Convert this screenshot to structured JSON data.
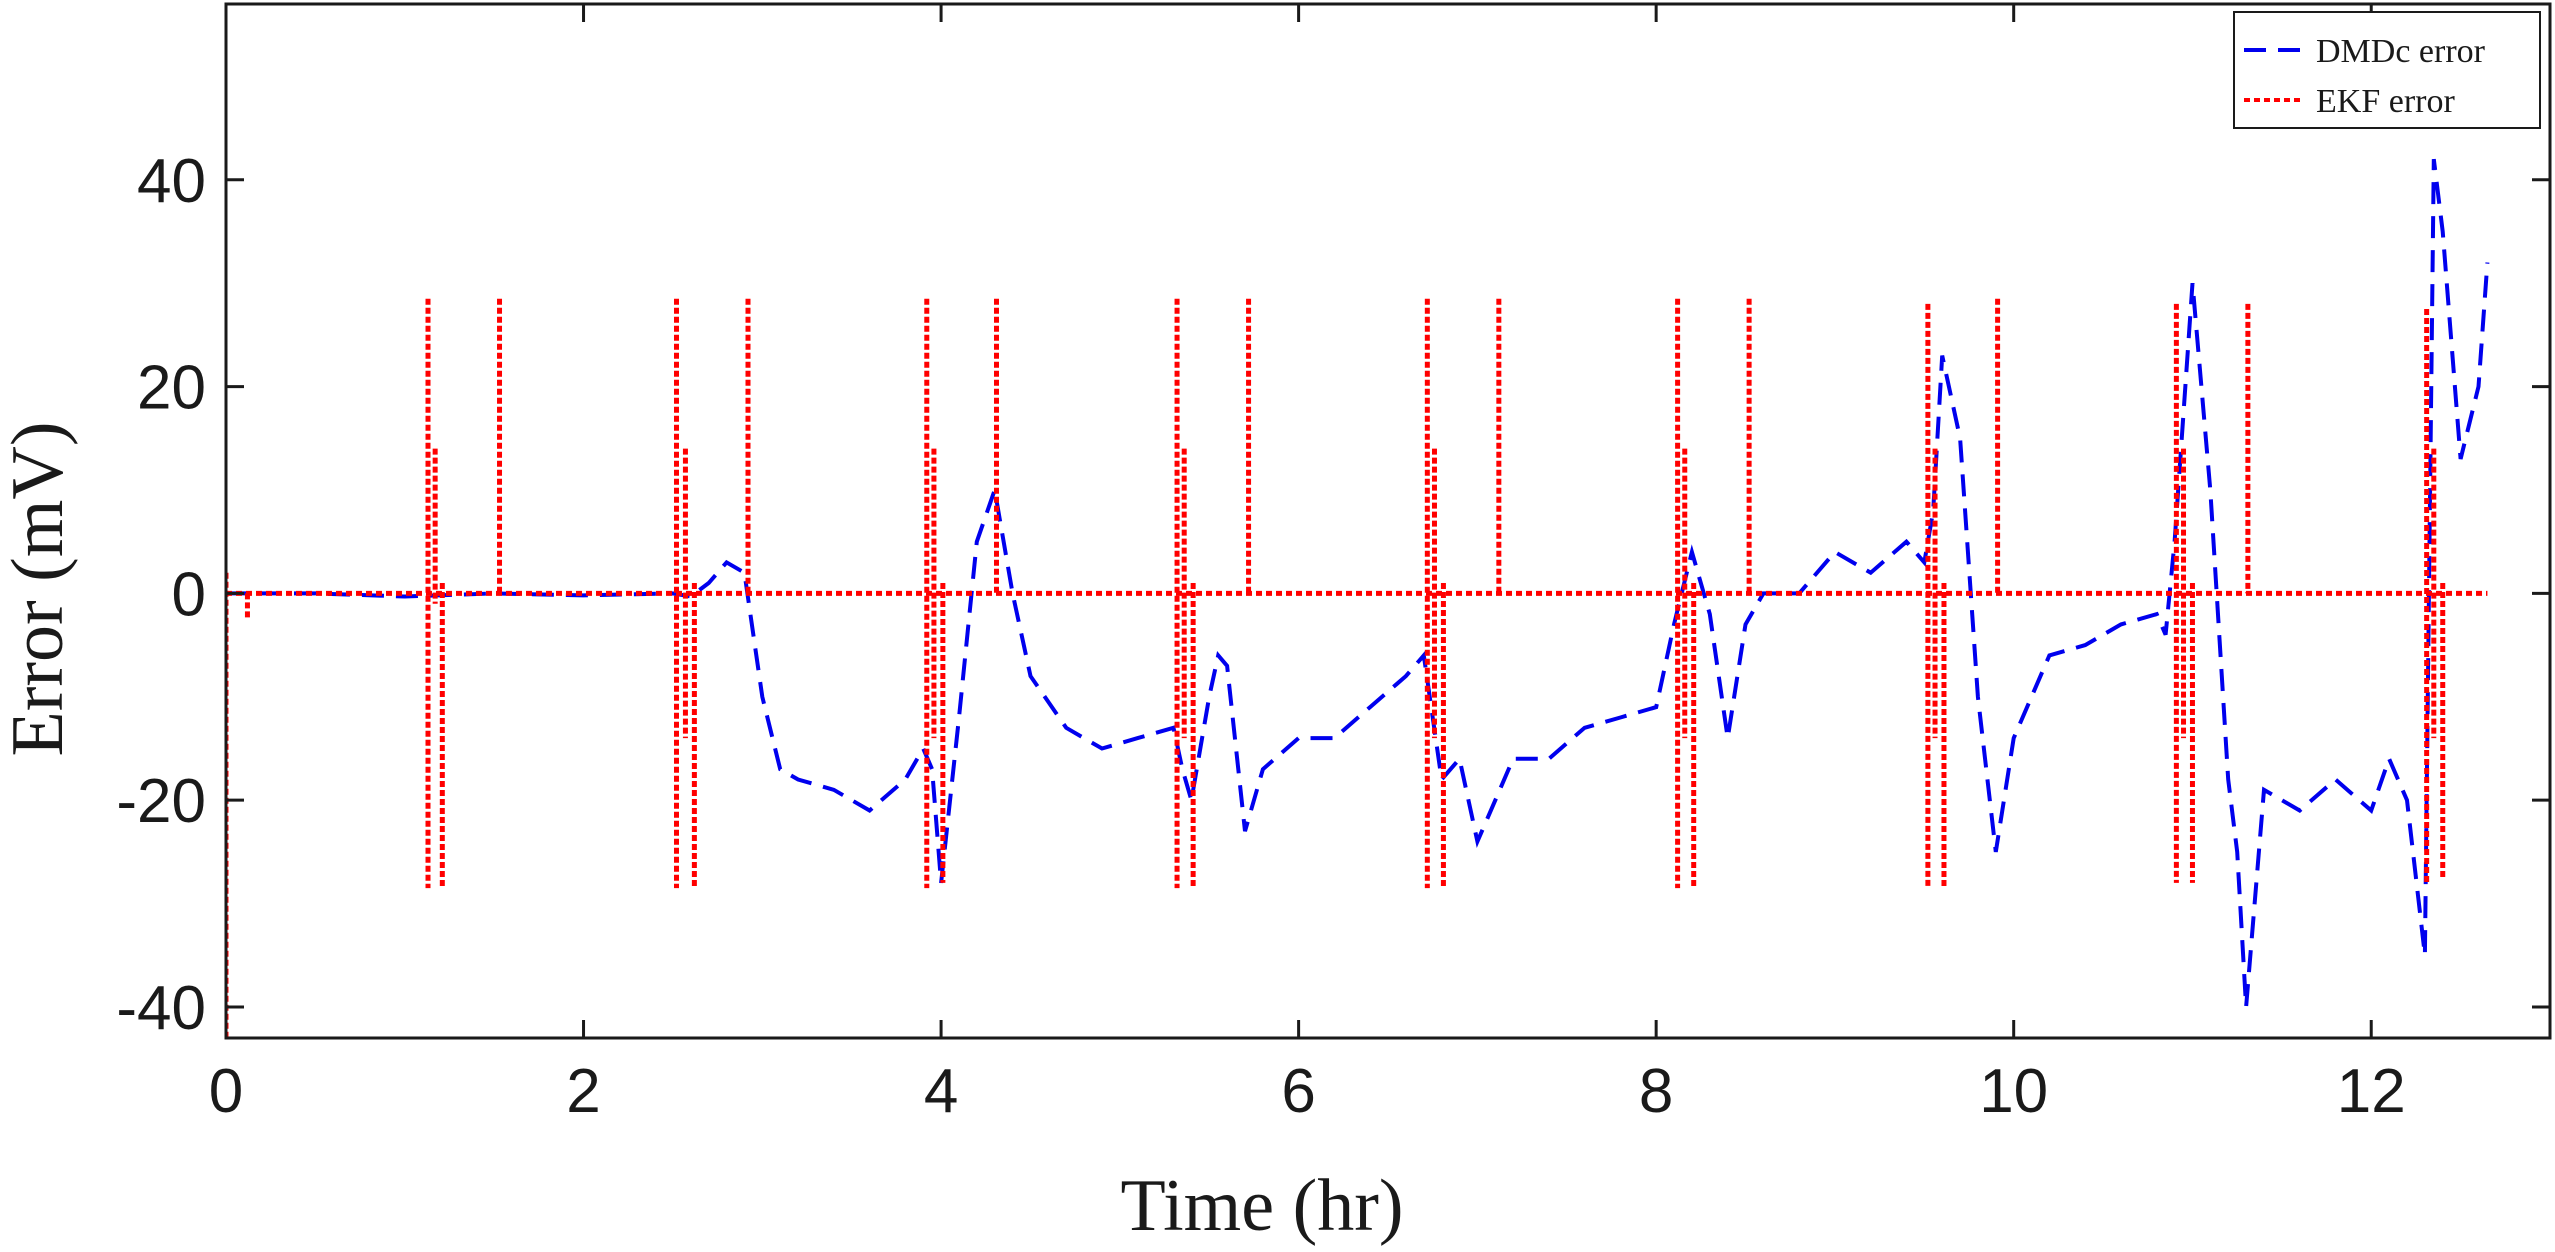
{
  "chart_data": {
    "type": "line",
    "title": "",
    "xlabel": "Time (hr)",
    "ylabel": "Error (mV)",
    "xlim": [
      0,
      13
    ],
    "ylim": [
      -43,
      57
    ],
    "xticks": [
      0,
      2,
      4,
      6,
      8,
      10,
      12
    ],
    "yticks": [
      -40,
      -20,
      0,
      20,
      40
    ],
    "xtick_labels": [
      "0",
      "2",
      "4",
      "6",
      "8",
      "10",
      "12"
    ],
    "ytick_labels": [
      "-40",
      "-20",
      "0",
      "20",
      "40"
    ],
    "grid": false,
    "legend_position": "top-right",
    "series": [
      {
        "name": "DMDc error",
        "color": "#0000ee",
        "style": "dashed",
        "x": [
          0,
          0.5,
          1.0,
          1.5,
          2.0,
          2.5,
          2.6,
          2.7,
          2.8,
          2.9,
          3.0,
          3.1,
          3.2,
          3.4,
          3.6,
          3.8,
          3.9,
          3.95,
          4.0,
          4.1,
          4.2,
          4.3,
          4.4,
          4.5,
          4.7,
          4.9,
          5.1,
          5.3,
          5.35,
          5.4,
          5.5,
          5.55,
          5.6,
          5.7,
          5.8,
          6.0,
          6.2,
          6.4,
          6.6,
          6.7,
          6.75,
          6.8,
          6.9,
          7.0,
          7.1,
          7.2,
          7.4,
          7.6,
          7.8,
          8.0,
          8.1,
          8.2,
          8.3,
          8.4,
          8.5,
          8.6,
          8.8,
          9.0,
          9.2,
          9.4,
          9.5,
          9.55,
          9.6,
          9.7,
          9.8,
          9.9,
          10.0,
          10.2,
          10.4,
          10.6,
          10.8,
          10.85,
          10.9,
          11.0,
          11.1,
          11.2,
          11.25,
          11.3,
          11.4,
          11.6,
          11.8,
          12.0,
          12.1,
          12.2,
          12.3,
          12.35,
          12.4,
          12.5,
          12.6,
          12.65
        ],
        "y": [
          0,
          0,
          -0.3,
          0,
          -0.2,
          0,
          -0.3,
          1,
          3,
          2,
          -10,
          -17,
          -18,
          -19,
          -21,
          -18,
          -15,
          -17,
          -28,
          -12,
          5,
          10,
          0,
          -8,
          -13,
          -15,
          -14,
          -13,
          -17,
          -20,
          -10,
          -6,
          -7,
          -23,
          -17,
          -14,
          -14,
          -11,
          -8,
          -6,
          -12,
          -18,
          -16,
          -24,
          -20,
          -16,
          -16,
          -13,
          -12,
          -11,
          -3,
          4,
          -2,
          -14,
          -3,
          0,
          0,
          4,
          2,
          5,
          3,
          8,
          23,
          15,
          -10,
          -25,
          -14,
          -6,
          -5,
          -3,
          -2,
          -4,
          5,
          30,
          10,
          -18,
          -25,
          -40,
          -19,
          -21,
          -18,
          -21,
          -16,
          -20,
          -35,
          42,
          35,
          13,
          20,
          32
        ]
      },
      {
        "name": "EKF error",
        "color": "#ff0000",
        "style": "dotted",
        "baseline": 0,
        "spikes": [
          {
            "x": 0.0,
            "high": 2,
            "low": -43
          },
          {
            "x": 0.12,
            "high": 0,
            "low": -2.5
          },
          {
            "x": 1.13,
            "high": 28.5,
            "low": -28.5
          },
          {
            "x": 1.17,
            "high": 14,
            "low": -1
          },
          {
            "x": 1.21,
            "high": 1,
            "low": -28.5
          },
          {
            "x": 1.53,
            "high": 28.5,
            "low": 0
          },
          {
            "x": 2.52,
            "high": 28.5,
            "low": -28.5
          },
          {
            "x": 2.57,
            "high": 14,
            "low": -14
          },
          {
            "x": 2.62,
            "high": 1,
            "low": -28.5
          },
          {
            "x": 2.92,
            "high": 28.5,
            "low": 0
          },
          {
            "x": 3.92,
            "high": 28.5,
            "low": -28.5
          },
          {
            "x": 3.96,
            "high": 14,
            "low": -14
          },
          {
            "x": 4.01,
            "high": 1,
            "low": -28
          },
          {
            "x": 4.31,
            "high": 28.5,
            "low": 0
          },
          {
            "x": 5.32,
            "high": 28.5,
            "low": -28.5
          },
          {
            "x": 5.36,
            "high": 14,
            "low": -14
          },
          {
            "x": 5.41,
            "high": 1,
            "low": -28.5
          },
          {
            "x": 5.72,
            "high": 28.5,
            "low": 0
          },
          {
            "x": 6.72,
            "high": 28.5,
            "low": -28.5
          },
          {
            "x": 6.76,
            "high": 14,
            "low": -14
          },
          {
            "x": 6.81,
            "high": 1,
            "low": -28.5
          },
          {
            "x": 7.12,
            "high": 28.5,
            "low": 0
          },
          {
            "x": 8.12,
            "high": 28.5,
            "low": -28.5
          },
          {
            "x": 8.16,
            "high": 14,
            "low": -14
          },
          {
            "x": 8.21,
            "high": 1,
            "low": -28.5
          },
          {
            "x": 8.52,
            "high": 28.5,
            "low": 0
          },
          {
            "x": 9.52,
            "high": 28,
            "low": -28.5
          },
          {
            "x": 9.56,
            "high": 14,
            "low": -14
          },
          {
            "x": 9.61,
            "high": 1,
            "low": -28.5
          },
          {
            "x": 9.91,
            "high": 28.5,
            "low": 0
          },
          {
            "x": 10.91,
            "high": 28,
            "low": -28
          },
          {
            "x": 10.95,
            "high": 14,
            "low": -14
          },
          {
            "x": 11.0,
            "high": 1,
            "low": -28
          },
          {
            "x": 11.31,
            "high": 28,
            "low": 0
          },
          {
            "x": 12.31,
            "high": 27.5,
            "low": -28
          },
          {
            "x": 12.35,
            "high": 14,
            "low": -14
          },
          {
            "x": 12.4,
            "high": 1,
            "low": -27.5
          }
        ],
        "x_end": 12.65
      }
    ]
  }
}
